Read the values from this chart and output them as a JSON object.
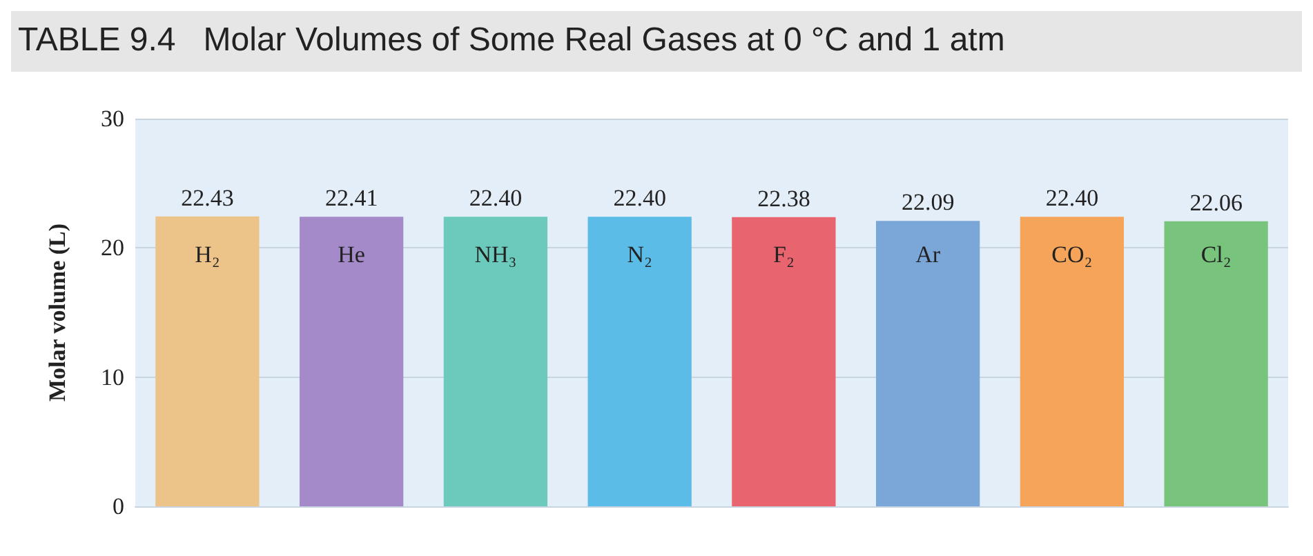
{
  "chart_data": {
    "type": "bar",
    "title": "TABLE 9.4   Molar Volumes of Some Real Gases at 0 °C and 1 atm",
    "ylabel": "Molar volume (L)",
    "categories": [
      "H₂",
      "He",
      "NH₃",
      "N₂",
      "F₂",
      "Ar",
      "CO₂",
      "Cl₂"
    ],
    "values": [
      22.43,
      22.41,
      22.4,
      22.4,
      22.38,
      22.09,
      22.4,
      22.06
    ],
    "value_labels": [
      "22.43",
      "22.41",
      "22.40",
      "22.40",
      "22.38",
      "22.09",
      "22.40",
      "22.06"
    ],
    "colors": [
      "#ecc48a",
      "#a48ac8",
      "#6ccabc",
      "#5cbce8",
      "#e8646e",
      "#7aa6d8",
      "#f6a45a",
      "#78c47c"
    ],
    "ylim": [
      0,
      30
    ],
    "yticks": [
      0,
      10,
      20,
      30
    ],
    "grid": "y"
  }
}
